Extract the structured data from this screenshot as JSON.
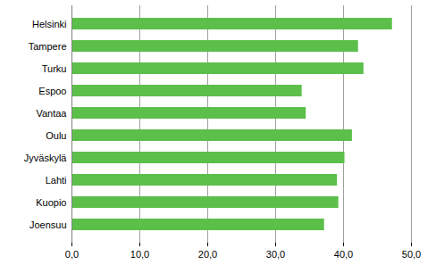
{
  "chart_data": {
    "type": "bar",
    "orientation": "horizontal",
    "categories": [
      "Helsinki",
      "Tampere",
      "Turku",
      "Espoo",
      "Vantaa",
      "Oulu",
      "Jyväskylä",
      "Lahti",
      "Kuopio",
      "Joensuu"
    ],
    "values": [
      47.2,
      42.2,
      43.0,
      33.9,
      34.5,
      41.3,
      40.2,
      39.1,
      39.3,
      37.2
    ],
    "color": "#5cbf4a",
    "xlim": [
      0,
      50
    ],
    "xticks": [
      {
        "value": 0,
        "label": "0,0"
      },
      {
        "value": 10,
        "label": "10,0"
      },
      {
        "value": 20,
        "label": "20,0"
      },
      {
        "value": 30,
        "label": "30,0"
      },
      {
        "value": 40,
        "label": "40,0"
      },
      {
        "value": 50,
        "label": "50,0"
      }
    ],
    "grid": true
  }
}
